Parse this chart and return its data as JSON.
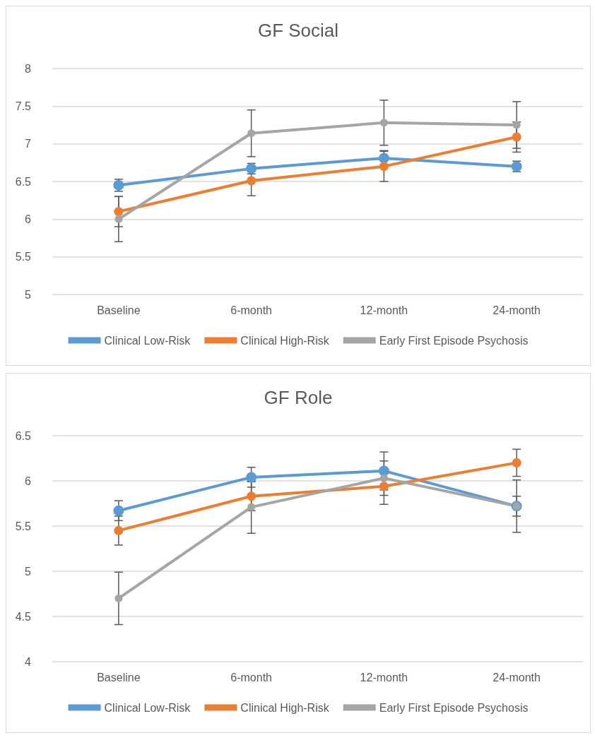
{
  "chart_data": [
    {
      "type": "line",
      "title": "GF Social",
      "categories": [
        "Baseline",
        "6-month",
        "12-month",
        "24-month"
      ],
      "series": [
        {
          "name": "Clinical Low-Risk",
          "color": "#5b9bd5",
          "values": [
            6.45,
            6.67,
            6.81,
            6.7
          ],
          "errors": [
            0.08,
            0.07,
            0.1,
            0.07
          ]
        },
        {
          "name": "Clinical High-Risk",
          "color": "#ed7d31",
          "values": [
            6.1,
            6.51,
            6.7,
            7.09
          ],
          "errors": [
            0.2,
            0.2,
            0.2,
            0.2
          ]
        },
        {
          "name": "Early First Episode Psychosis",
          "color": "#a5a5a5",
          "values": [
            6.0,
            7.14,
            7.28,
            7.25
          ],
          "errors": [
            0.3,
            0.31,
            0.3,
            0.31
          ]
        }
      ],
      "ylim": [
        5,
        8
      ],
      "yticks": [
        5,
        5.5,
        6,
        6.5,
        7,
        7.5,
        8
      ],
      "grid": "y",
      "legend": "bottom",
      "marker": "circle"
    },
    {
      "type": "line",
      "title": "GF Role",
      "categories": [
        "Baseline",
        "6-month",
        "12-month",
        "24-month"
      ],
      "series": [
        {
          "name": "Clinical Low-Risk",
          "color": "#5b9bd5",
          "values": [
            5.67,
            6.04,
            6.11,
            5.72
          ],
          "errors": [
            0.11,
            0.11,
            0.21,
            0.11
          ]
        },
        {
          "name": "Clinical High-Risk",
          "color": "#ed7d31",
          "values": [
            5.45,
            5.83,
            5.94,
            6.2
          ],
          "errors": [
            0.16,
            0.16,
            0.2,
            0.15
          ]
        },
        {
          "name": "Early First Episode Psychosis",
          "color": "#a5a5a5",
          "values": [
            4.7,
            5.71,
            6.03,
            5.72
          ],
          "errors": [
            0.29,
            0.29,
            0.19,
            0.29
          ]
        }
      ],
      "ylim": [
        4,
        6.5
      ],
      "yticks": [
        4,
        4.5,
        5,
        5.5,
        6,
        6.5
      ],
      "grid": "y",
      "legend": "bottom",
      "marker": "circle"
    }
  ]
}
